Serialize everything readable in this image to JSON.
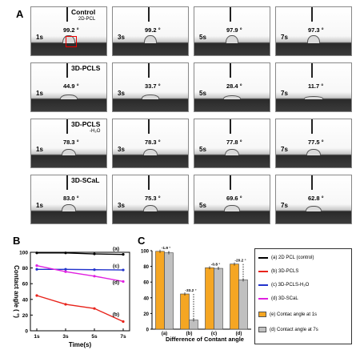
{
  "panels": {
    "a": "A",
    "b": "B",
    "c": "C"
  },
  "times": [
    "1s",
    "3s",
    "5s",
    "7s"
  ],
  "rows": [
    {
      "label": "Control",
      "sub": "2D-PCL",
      "angles": [
        "99.2 °",
        "99.2 °",
        "97.9 °",
        "97.3 °"
      ],
      "drop": [
        0.7,
        0.7,
        0.68,
        0.66
      ]
    },
    {
      "label": "3D-PCLS",
      "sub": "",
      "angles": [
        "44.9 °",
        "33.7 °",
        "28.4 °",
        "11.7 °"
      ],
      "drop": [
        0.35,
        0.28,
        0.24,
        0.12
      ]
    },
    {
      "label": "3D-PCLS",
      "sub": "-H₂O",
      "angles": [
        "78.3 °",
        "78.3 °",
        "77.8 °",
        "77.5 °"
      ],
      "drop": [
        0.55,
        0.55,
        0.55,
        0.54
      ]
    },
    {
      "label": "3D-SCaL",
      "sub": "",
      "angles": [
        "83.0 °",
        "75.3 °",
        "69.6 °",
        "62.8 °"
      ],
      "drop": [
        0.58,
        0.52,
        0.48,
        0.44
      ]
    }
  ],
  "chart_data": [
    {
      "type": "line",
      "ylabel": "Contact angle ( °)",
      "xlabel": "Time(s)",
      "x": [
        "1s",
        "3s",
        "5s",
        "7s"
      ],
      "ylim": [
        0,
        100
      ],
      "yticks": [
        0,
        20,
        40,
        60,
        80,
        100
      ],
      "series": [
        {
          "name": "(a)",
          "color": "#000000",
          "values": [
            99.2,
            99.2,
            97.9,
            97.3
          ]
        },
        {
          "name": "(b)",
          "color": "#e8231b",
          "values": [
            44.9,
            33.7,
            28.4,
            11.7
          ]
        },
        {
          "name": "(c)",
          "color": "#2233cc",
          "values": [
            78.3,
            78.3,
            77.8,
            77.5
          ]
        },
        {
          "name": "(d)",
          "color": "#e020e0",
          "values": [
            83.0,
            75.3,
            69.6,
            62.8
          ]
        }
      ]
    },
    {
      "type": "bar",
      "xlabel": "Difference of Contant angle",
      "categories": [
        "(a)",
        "(b)",
        "(c)",
        "(d)"
      ],
      "ylim": [
        0,
        100
      ],
      "yticks": [
        0,
        20,
        40,
        60,
        80,
        100
      ],
      "series": [
        {
          "name": "Contac angle at 1s",
          "color": "#f5a623",
          "values": [
            99.2,
            44.9,
            78.3,
            83.0
          ]
        },
        {
          "name": "Contact angle at 7s",
          "color": "#c0c0c0",
          "values": [
            97.3,
            11.7,
            77.5,
            62.8
          ]
        }
      ],
      "diff_labels": [
        "-1.9 °",
        "-33.2 °",
        "-0.8 °",
        "-20.2 °"
      ]
    }
  ],
  "legend": [
    {
      "label": "(a) 2D PCL (control)",
      "kind": "line",
      "color": "#000000"
    },
    {
      "label": "(b) 3D-PCLS",
      "kind": "line",
      "color": "#e8231b"
    },
    {
      "label": "(c) 3D-PCLS-H₂O",
      "kind": "line",
      "color": "#2233cc"
    },
    {
      "label": "(d) 3D-SCaL",
      "kind": "line",
      "color": "#e020e0"
    },
    {
      "label": "(e) Contac angle at 1s",
      "kind": "box",
      "color": "#f5a623"
    },
    {
      "label": "(d) Contact angle at 7s",
      "kind": "box",
      "color": "#c0c0c0"
    }
  ]
}
